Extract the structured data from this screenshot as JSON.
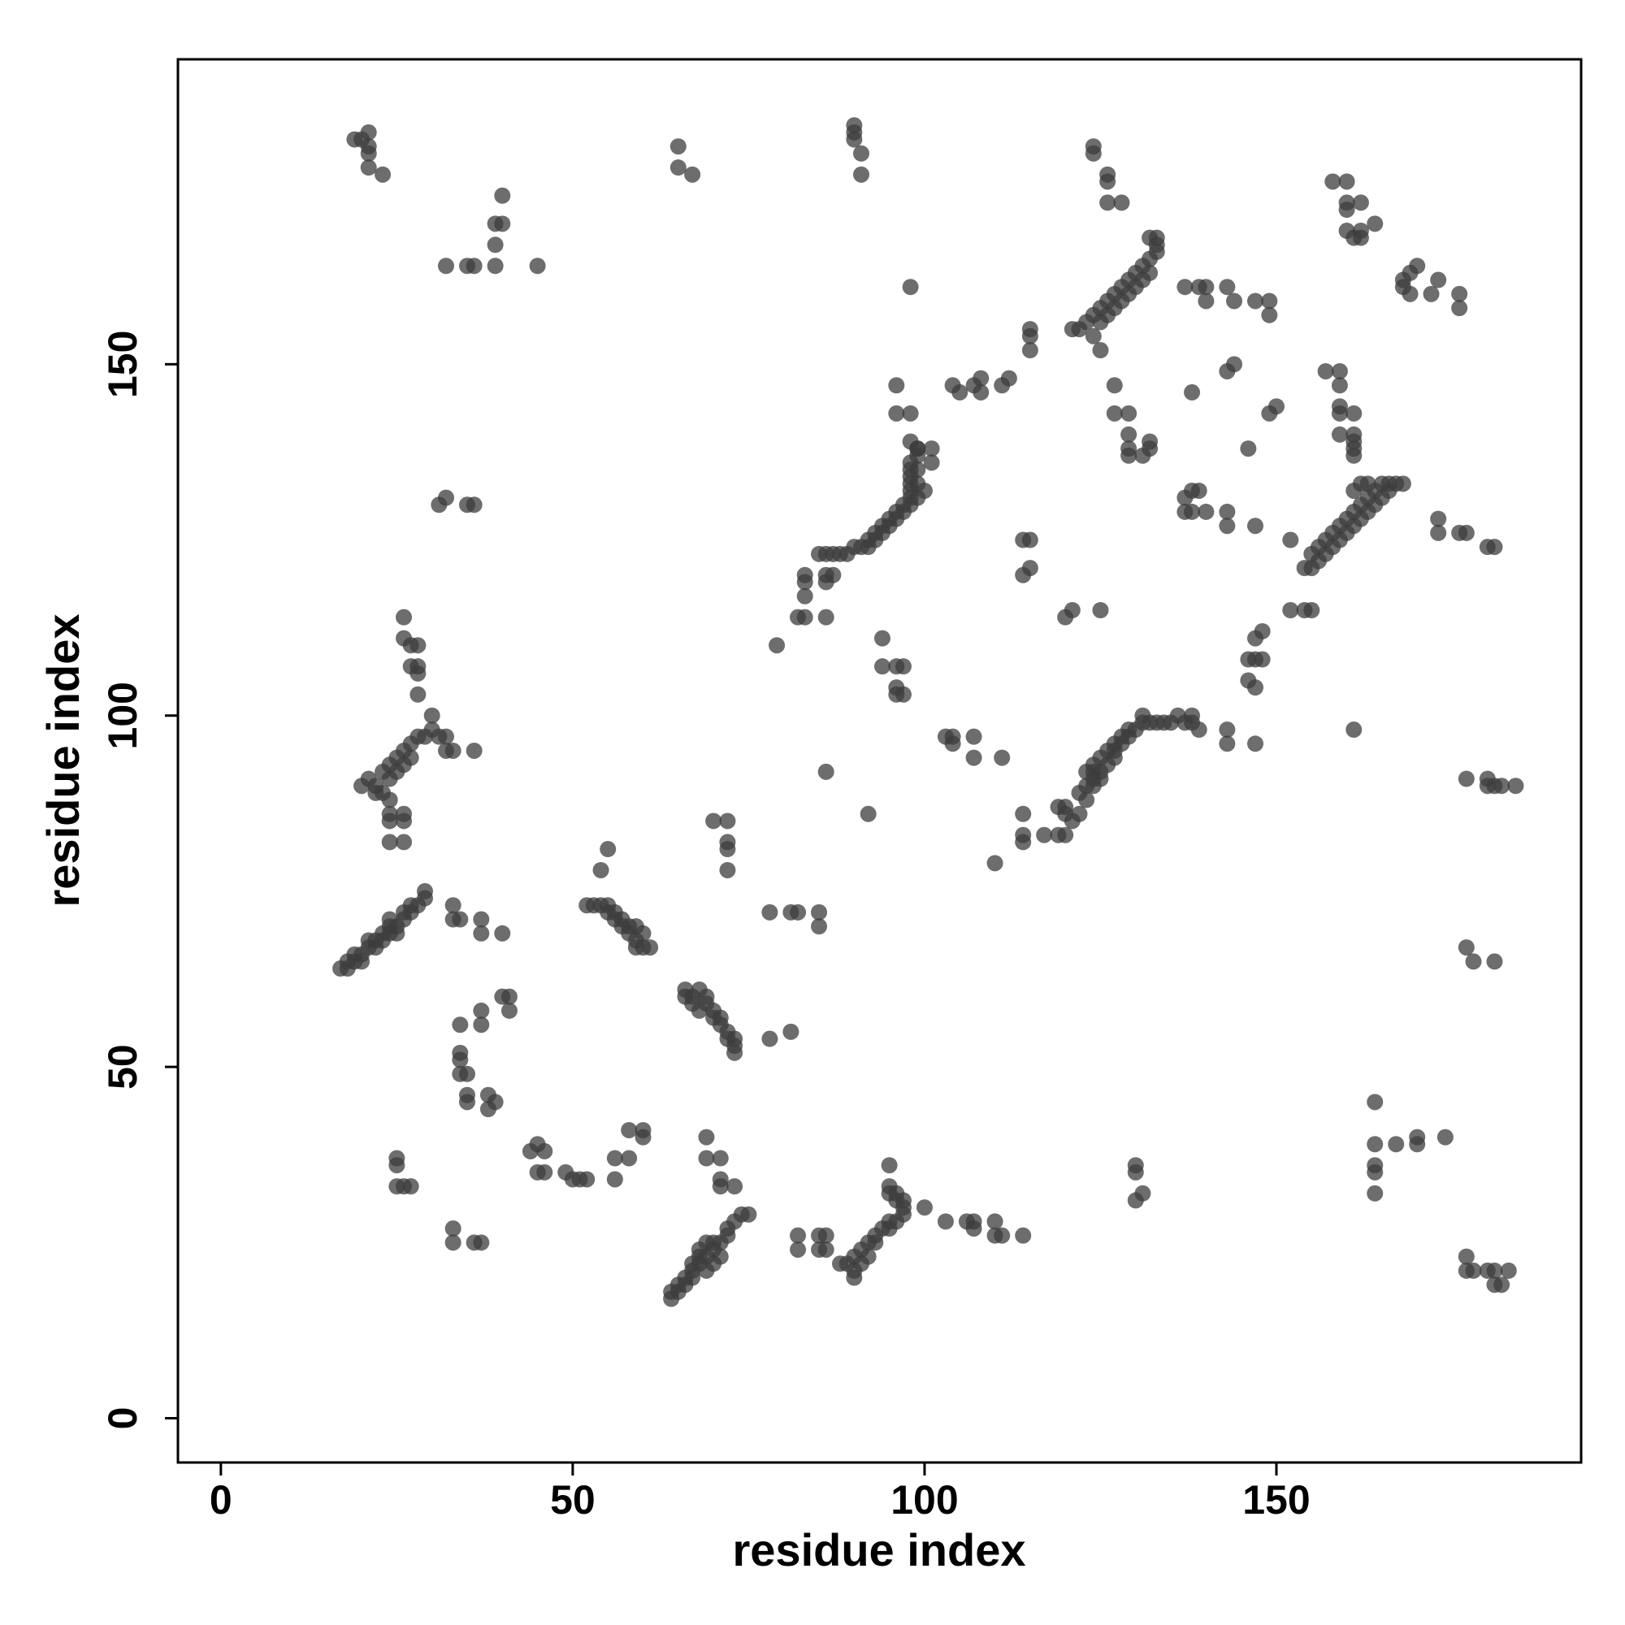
{
  "chart_data": {
    "type": "scatter",
    "x_label": "residue index",
    "y_label": "residue index",
    "xlim": [
      -6.1,
      193.3
    ],
    "ylim": [
      -6.3,
      193.4
    ],
    "xticks": [
      0,
      50,
      100,
      150
    ],
    "yticks": [
      0,
      50,
      100,
      150
    ],
    "opacity": 0.75,
    "series": [
      {
        "color": "#3c3c3c",
        "x": [
          19,
          20,
          21,
          21,
          21,
          21,
          23,
          32,
          35,
          36,
          39,
          45,
          39,
          39,
          40,
          40,
          65,
          65,
          67,
          90,
          90,
          90,
          91,
          91,
          98,
          124,
          124,
          126,
          126,
          126,
          128,
          121,
          122,
          123,
          124,
          125,
          126,
          127,
          128,
          129,
          130,
          131,
          132,
          133,
          133,
          132,
          133,
          124,
          125,
          126,
          127,
          128,
          129,
          130,
          131,
          132,
          125,
          137,
          139,
          140,
          140,
          143,
          144,
          147,
          149,
          149,
          115,
          115,
          115,
          104,
          105,
          108,
          107,
          108,
          111,
          112,
          96,
          96,
          98,
          98,
          99,
          101,
          101,
          85,
          86,
          87,
          88,
          89,
          90,
          91,
          92,
          93,
          94,
          95,
          96,
          97,
          98,
          98,
          98,
          98,
          98,
          98,
          99,
          99,
          92,
          93,
          94,
          95,
          96,
          97,
          98,
          99,
          99,
          99,
          100,
          83,
          83,
          83,
          82,
          83,
          86,
          87,
          86,
          86,
          79,
          94,
          94,
          96,
          97,
          96,
          97,
          96,
          86,
          92,
          103,
          104,
          104,
          107,
          107,
          111,
          114,
          115,
          114,
          115,
          120,
          121,
          125,
          127,
          127,
          129,
          129,
          129,
          129,
          131,
          132,
          132,
          138,
          143,
          144,
          146,
          149,
          150,
          137,
          138,
          139,
          137,
          138,
          140,
          143,
          143,
          147,
          152,
          152,
          154,
          155,
          154,
          155,
          156,
          157,
          158,
          159,
          160,
          161,
          162,
          163,
          164,
          165,
          166,
          167,
          168,
          155,
          156,
          157,
          158,
          159,
          160,
          161,
          162,
          163,
          164,
          161,
          162,
          163,
          165,
          166,
          157,
          159,
          159,
          159,
          159,
          161,
          159,
          161,
          161,
          161,
          161,
          158,
          160,
          160,
          162,
          160,
          160,
          161,
          162,
          164,
          162,
          168,
          169,
          170,
          168,
          169,
          172,
          173,
          176,
          176,
          173,
          173,
          176,
          177,
          180,
          181,
          147,
          148,
          146,
          147,
          148,
          146,
          147,
          147,
          143,
          143,
          161,
          119,
          120,
          120,
          121,
          122,
          123,
          123,
          124,
          124,
          125,
          126,
          127,
          127,
          128,
          129,
          129,
          130,
          131,
          131,
          132,
          133,
          134,
          135,
          136,
          137,
          138,
          138,
          139,
          123,
          124,
          125,
          126,
          127,
          128,
          124,
          125,
          122,
          114,
          114,
          114,
          117,
          119,
          120,
          110,
          177,
          180,
          181,
          182,
          184,
          180,
          177,
          178,
          181,
          17,
          18,
          19,
          19,
          20,
          21,
          21,
          22,
          23,
          24,
          25,
          26,
          27,
          28,
          29,
          29,
          23,
          24,
          25,
          22,
          20,
          18,
          26,
          27,
          24,
          33,
          33,
          34,
          37,
          37,
          40,
          20,
          21,
          22,
          22,
          23,
          24,
          25,
          26,
          27,
          28,
          29,
          30,
          30,
          24,
          25,
          26,
          27,
          23,
          24,
          24,
          24,
          26,
          26,
          24,
          26,
          31,
          32,
          32,
          33,
          36,
          26,
          26,
          27,
          28,
          27,
          28,
          28,
          28,
          31,
          32,
          35,
          36,
          52,
          53,
          54,
          55,
          56,
          56,
          57,
          58,
          58,
          59,
          59,
          60,
          60,
          61,
          59,
          57,
          55,
          54,
          55,
          66,
          66,
          67,
          67,
          68,
          69,
          69,
          70,
          70,
          71,
          71,
          72,
          72,
          73,
          73,
          73,
          68,
          70,
          72,
          72,
          72,
          72,
          78,
          82,
          81,
          85,
          85,
          78,
          81,
          34,
          37,
          37,
          40,
          41,
          41,
          34,
          34,
          34,
          35,
          35,
          35,
          38,
          38,
          39,
          44,
          45,
          46,
          45,
          46,
          49,
          50,
          51,
          52,
          58,
          60,
          60,
          56,
          58,
          56,
          25,
          25,
          25,
          26,
          27,
          33,
          33,
          36,
          37,
          69,
          69,
          71,
          71,
          71,
          73,
          64,
          64,
          65,
          66,
          66,
          67,
          67,
          68,
          68,
          69,
          70,
          70,
          71,
          72,
          72,
          73,
          74,
          75,
          69,
          70,
          71,
          65,
          67,
          68,
          69,
          82,
          82,
          85,
          86,
          85,
          86,
          88,
          89,
          90,
          90,
          91,
          92,
          92,
          93,
          93,
          94,
          95,
          95,
          96,
          97,
          97,
          96,
          96,
          95,
          95,
          95,
          97,
          91,
          90,
          100,
          103,
          106,
          107,
          107,
          110,
          110,
          111,
          114,
          130,
          130,
          130,
          131,
          164,
          164,
          167,
          170,
          170,
          174,
          164,
          164,
          164,
          177,
          178,
          177,
          180,
          181,
          183,
          181,
          182
        ],
        "values": [
          182,
          182,
          183,
          181,
          180,
          178,
          177,
          164,
          164,
          164,
          164,
          164,
          167,
          170,
          170,
          174,
          181,
          178,
          177,
          184,
          183,
          182,
          180,
          177,
          161,
          181,
          180,
          177,
          176,
          173,
          173,
          155,
          155,
          156,
          157,
          158,
          159,
          160,
          161,
          162,
          163,
          164,
          165,
          166,
          167,
          168,
          168,
          154,
          156,
          157,
          158,
          159,
          160,
          161,
          162,
          163,
          152,
          161,
          161,
          161,
          159,
          161,
          159,
          159,
          159,
          157,
          155,
          154,
          152,
          147,
          146,
          148,
          147,
          146,
          147,
          148,
          147,
          143,
          143,
          139,
          138,
          138,
          136,
          123,
          123,
          123,
          123,
          123,
          124,
          124,
          125,
          126,
          127,
          128,
          129,
          130,
          131,
          132,
          133,
          134,
          135,
          136,
          137,
          138,
          124,
          125,
          126,
          127,
          128,
          129,
          130,
          131,
          133,
          135,
          132,
          120,
          119,
          117,
          114,
          114,
          120,
          120,
          119,
          114,
          110,
          111,
          107,
          107,
          107,
          104,
          103,
          103,
          92,
          86,
          97,
          97,
          96,
          97,
          94,
          94,
          125,
          125,
          120,
          121,
          114,
          115,
          115,
          147,
          143,
          143,
          140,
          138,
          137,
          137,
          139,
          138,
          146,
          149,
          150,
          138,
          143,
          144,
          131,
          132,
          132,
          129,
          129,
          129,
          129,
          127,
          127,
          125,
          115,
          115,
          115,
          121,
          121,
          122,
          123,
          124,
          125,
          126,
          127,
          128,
          129,
          130,
          131,
          132,
          133,
          133,
          123,
          124,
          125,
          126,
          127,
          128,
          129,
          130,
          131,
          132,
          132,
          133,
          133,
          133,
          133,
          149,
          149,
          147,
          144,
          143,
          143,
          140,
          140,
          139,
          137,
          138,
          176,
          176,
          173,
          173,
          172,
          169,
          168,
          169,
          170,
          168,
          162,
          163,
          164,
          161,
          160,
          160,
          162,
          160,
          158,
          128,
          126,
          126,
          126,
          124,
          124,
          111,
          112,
          108,
          108,
          108,
          105,
          104,
          96,
          98,
          96,
          98,
          87,
          87,
          86,
          85,
          86,
          88,
          90,
          91,
          92,
          92,
          93,
          94,
          95,
          96,
          97,
          98,
          98,
          99,
          100,
          99,
          99,
          99,
          99,
          100,
          99,
          99,
          100,
          98,
          92,
          93,
          94,
          95,
          96,
          97,
          90,
          91,
          89,
          86,
          83,
          82,
          83,
          83,
          83,
          79,
          91,
          91,
          90,
          90,
          90,
          90,
          67,
          65,
          65,
          64,
          64,
          65,
          66,
          66,
          67,
          68,
          68,
          69,
          70,
          70,
          71,
          72,
          73,
          74,
          75,
          68,
          69,
          69,
          67,
          65,
          65,
          72,
          73,
          71,
          73,
          71,
          71,
          71,
          69,
          69,
          90,
          91,
          90,
          89,
          92,
          93,
          94,
          95,
          96,
          97,
          97,
          98,
          100,
          91,
          92,
          93,
          94,
          89,
          88,
          86,
          85,
          86,
          85,
          82,
          82,
          97,
          97,
          95,
          95,
          95,
          114,
          111,
          110,
          110,
          107,
          107,
          106,
          103,
          130,
          131,
          130,
          130,
          73,
          73,
          73,
          73,
          72,
          71,
          71,
          70,
          69,
          70,
          68,
          69,
          67,
          67,
          67,
          70,
          72,
          78,
          81,
          61,
          60,
          60,
          59,
          58,
          60,
          59,
          58,
          57,
          57,
          56,
          55,
          54,
          54,
          53,
          52,
          61,
          85,
          85,
          82,
          81,
          78,
          72,
          72,
          72,
          72,
          70,
          54,
          55,
          56,
          58,
          56,
          60,
          60,
          58,
          52,
          51,
          49,
          49,
          46,
          45,
          46,
          44,
          45,
          38,
          39,
          38,
          35,
          35,
          35,
          34,
          34,
          34,
          41,
          41,
          40,
          37,
          37,
          34,
          37,
          36,
          33,
          33,
          33,
          27,
          25,
          25,
          25,
          40,
          37,
          37,
          34,
          33,
          33,
          17,
          18,
          19,
          19,
          20,
          20,
          21,
          22,
          23,
          23,
          24,
          25,
          25,
          26,
          27,
          28,
          29,
          29,
          21,
          22,
          23,
          18,
          22,
          24,
          25,
          26,
          24,
          26,
          26,
          24,
          24,
          22,
          22,
          23,
          21,
          24,
          23,
          25,
          25,
          26,
          27,
          27,
          28,
          28,
          29,
          30,
          31,
          32,
          32,
          33,
          36,
          31,
          22,
          20,
          30,
          28,
          28,
          28,
          27,
          28,
          26,
          26,
          26,
          36,
          35,
          31,
          32,
          45,
          39,
          39,
          40,
          39,
          40,
          36,
          35,
          32,
          23,
          21,
          21,
          21,
          21,
          21,
          19,
          19
        ]
      }
    ]
  }
}
